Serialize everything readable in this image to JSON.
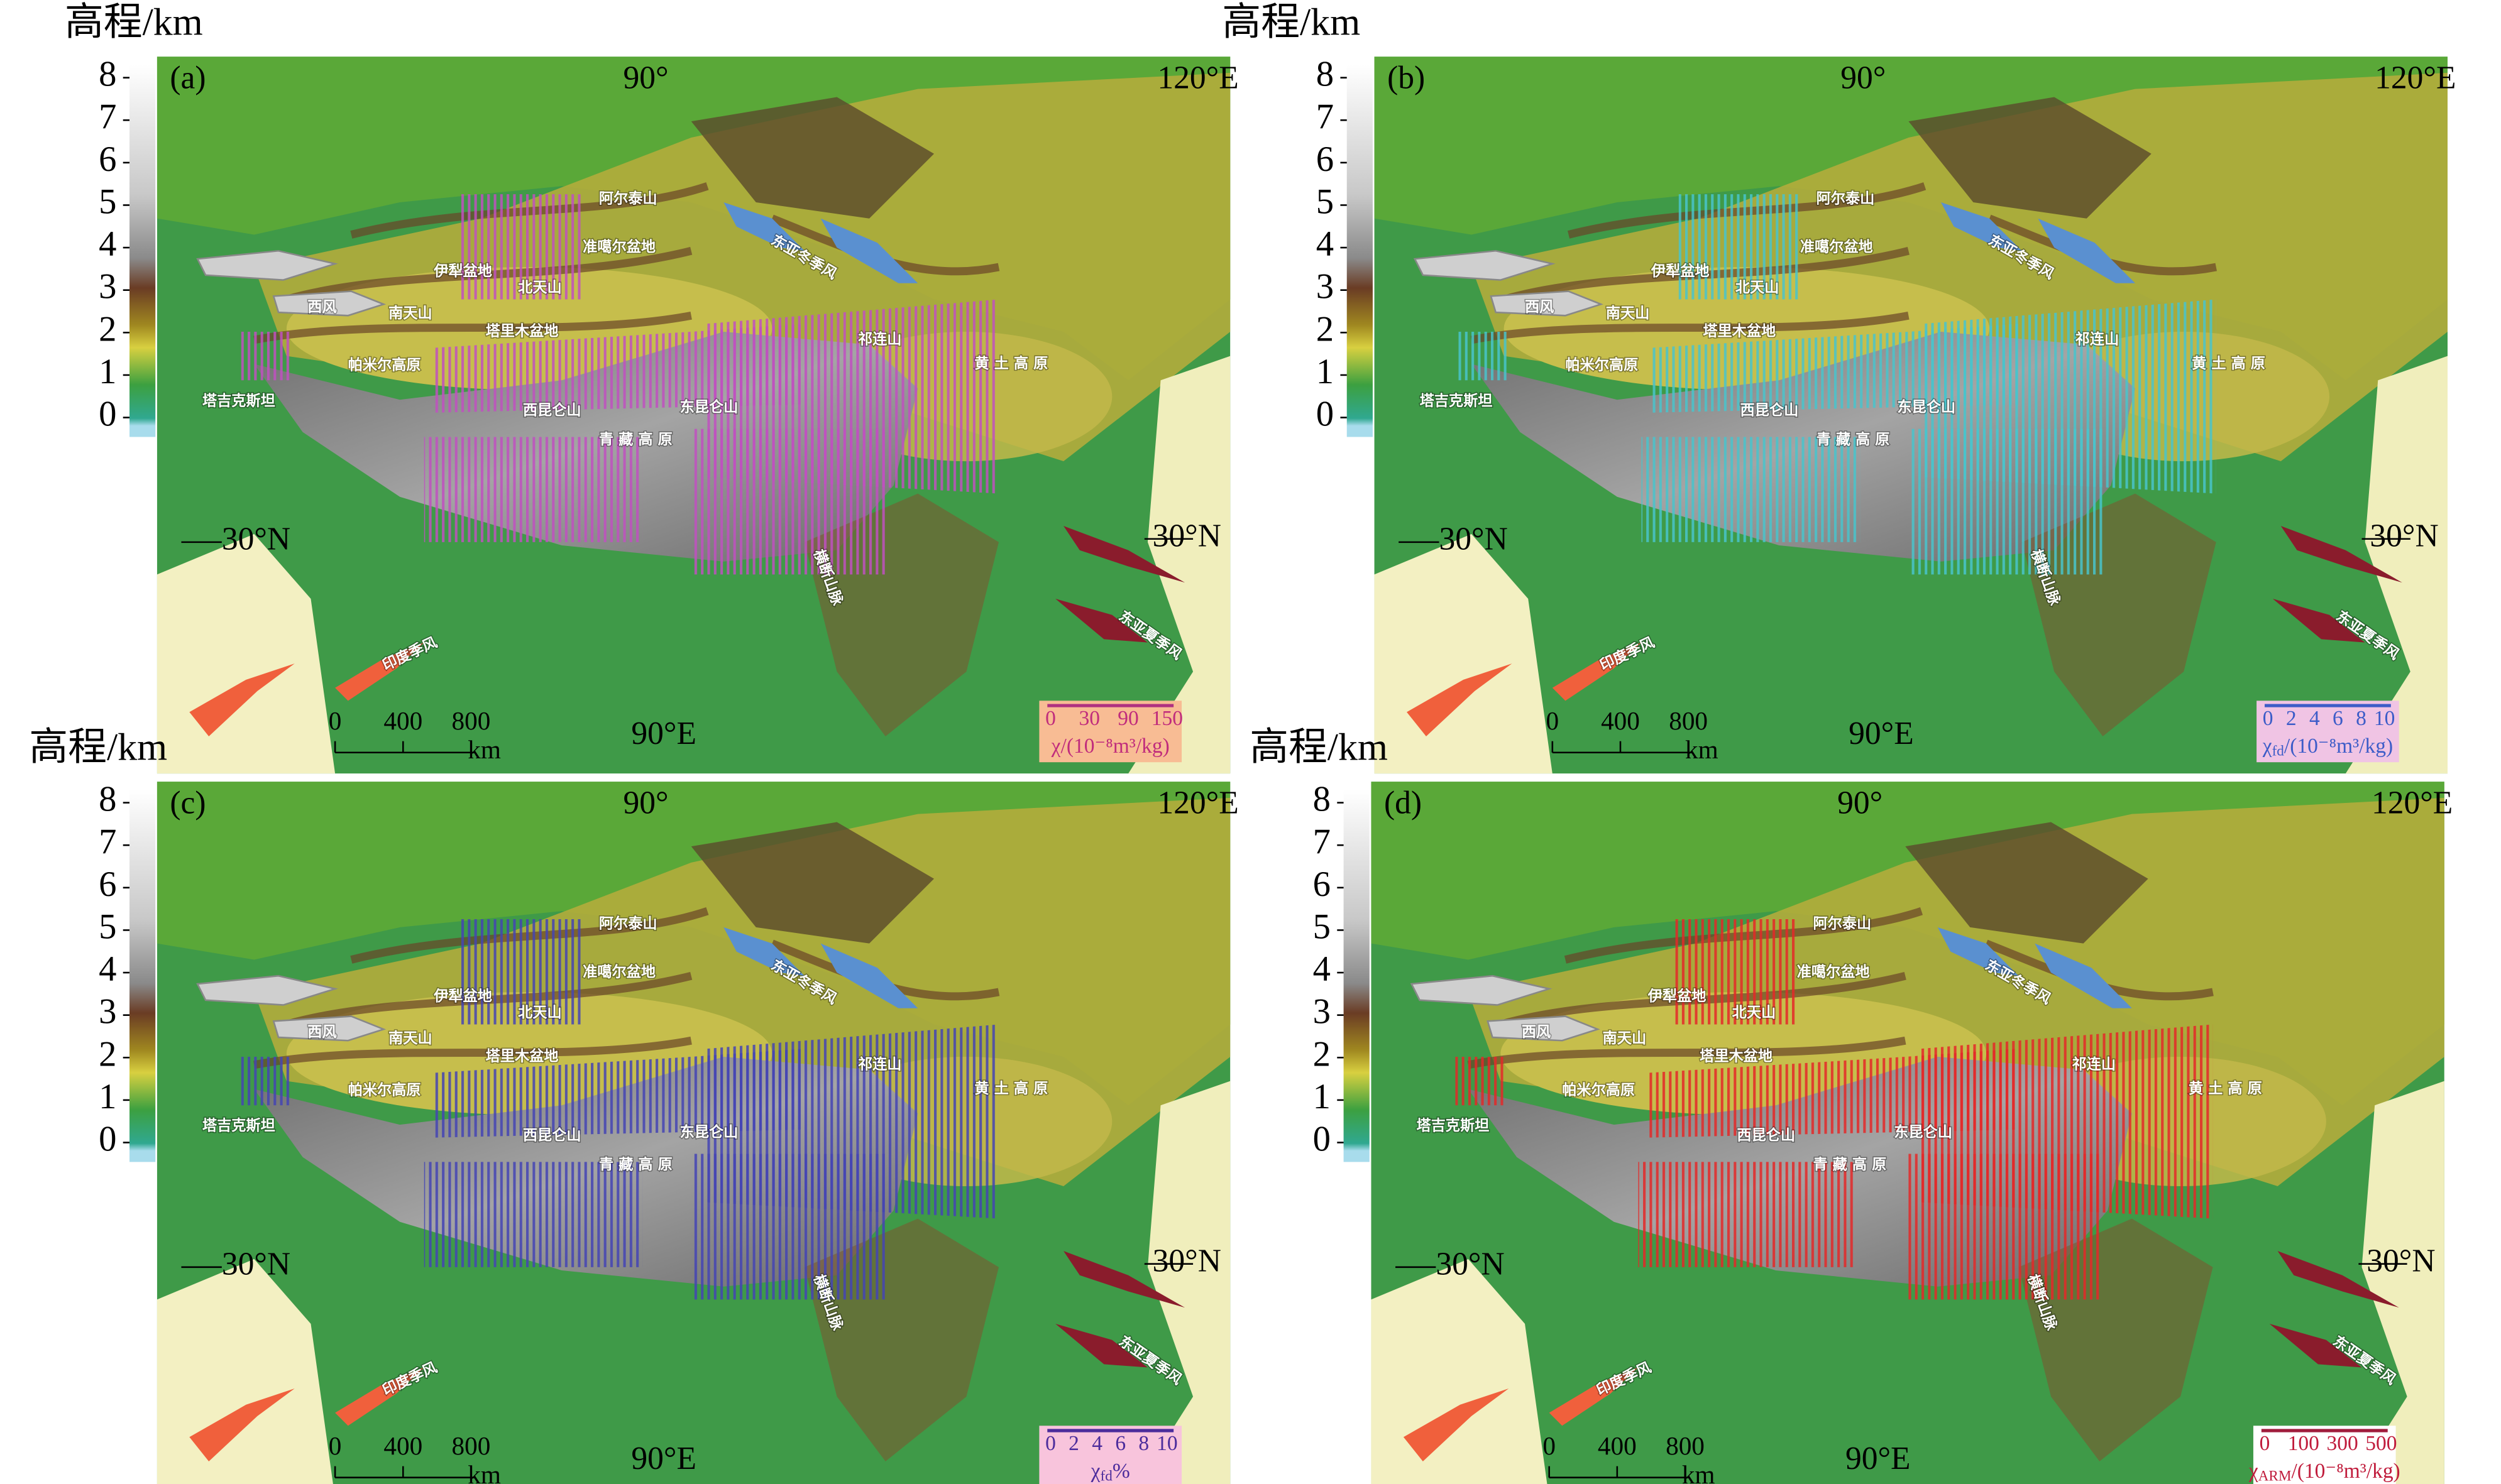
{
  "elevation_axis": {
    "title": "高程/km",
    "ticks": [
      8,
      7,
      6,
      5,
      4,
      3,
      2,
      1,
      0
    ]
  },
  "grid_labels": {
    "lon90": "90°",
    "lon120": "120°E",
    "lat30_left": "30°N",
    "lat30_right": "30°N",
    "lon90e": "90°E"
  },
  "scale_bar": {
    "ticks": [
      0,
      400,
      800
    ],
    "unit": "km"
  },
  "map_labels": {
    "altai": "阿尔泰山",
    "winter_monsoon": "东亚冬季风",
    "ili": "伊犁盆地",
    "junggar": "准噶尔盆地",
    "north_tianshan": "北天山",
    "westerlies": "西风",
    "south_tianshan": "南天山",
    "tarim": "塔里木盆地",
    "pamir": "帕米尔高原",
    "tajikistan": "塔吉克斯坦",
    "qilian": "祁连山",
    "loess": "黄 土 高 原",
    "west_kunlun": "西昆仑山",
    "east_kunlun": "东昆仑山",
    "tibet": "青 藏 高 原",
    "hengduan": "横断山脉",
    "summer_monsoon": "东亚夏季风",
    "indian_monsoon": "印度季风"
  },
  "panels": [
    {
      "label": "(a)",
      "color": "#c050c0",
      "legend": {
        "ticks": [
          0,
          30,
          90,
          150
        ],
        "symbol": "χ",
        "unit": "/(10⁻⁸m³/kg)",
        "box": "#f8bc94",
        "text_color": "#c02c7c",
        "line_color": "#b03080"
      }
    },
    {
      "label": "(b)",
      "color": "#48c4cc",
      "legend": {
        "ticks": [
          0,
          2,
          4,
          6,
          8,
          10
        ],
        "symbol": "χ",
        "subscript": "fd",
        "unit": "/(10⁻⁸m³/kg)",
        "box": "#f0c4e4",
        "text_color": "#3c5cc8",
        "line_color": "#3c5cc8"
      }
    },
    {
      "label": "(c)",
      "color": "#4444b4",
      "legend": {
        "ticks": [
          0,
          2,
          4,
          6,
          8,
          10
        ],
        "symbol": "χ",
        "subscript": "fd",
        "unit": "%",
        "box": "#f8c4dc",
        "text_color": "#4c2c9c",
        "line_color": "#4c2c9c"
      }
    },
    {
      "label": "(d)",
      "color": "#e42828",
      "legend": {
        "ticks": [
          0,
          100,
          300,
          500
        ],
        "symbol": "χ",
        "subscript": "ARM",
        "unit": "/(10⁻⁸m³/kg)",
        "box": "#ffffff",
        "text_color": "#c01c3c",
        "line_color": "#a01c3c"
      }
    }
  ]
}
